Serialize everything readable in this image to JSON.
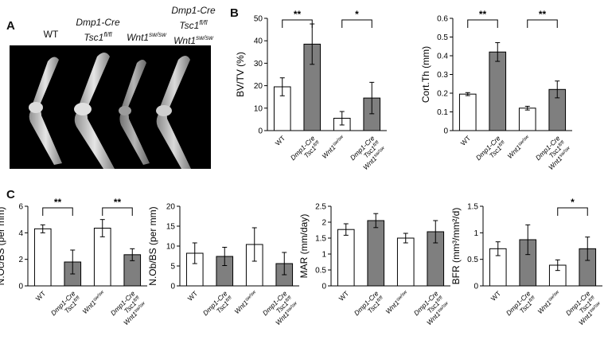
{
  "panel_a": {
    "letter": "A",
    "genotype_labels": [
      {
        "line1": "WT",
        "line2": "",
        "line2_sup": ""
      },
      {
        "line1": "Dmp1-Cre",
        "line2": "Tsc1",
        "line2_sup": "fl/fl"
      },
      {
        "line1": "Wnt1",
        "line1_sup": "sw/sw",
        "line2": "",
        "line2_sup": ""
      },
      {
        "line1": "Dmp1-Cre",
        "line2": "Tsc1",
        "line2_sup": "fl/fl",
        "line3": "Wnt1",
        "line3_sup": "sw/sw"
      }
    ]
  },
  "panel_b": {
    "letter": "B"
  },
  "panel_c": {
    "letter": "C"
  },
  "colors": {
    "wt_bar": "#ffffff",
    "mutant_bar": "#7f7f7f",
    "axis": "#000000"
  },
  "chart_data": [
    {
      "id": "bvtv",
      "type": "bar",
      "ylabel": "BV/TV (%)",
      "ylim": [
        0,
        50
      ],
      "yticks": [
        0,
        10,
        20,
        30,
        40,
        50
      ],
      "categories": [
        "WT",
        "Dmp1-Cre Tsc1 fl/fl",
        "Wnt1 sw/sw",
        "Dmp1-Cre Tsc1 fl/fl Wnt1 sw/sw"
      ],
      "values": [
        19.5,
        38.5,
        5.5,
        14.5
      ],
      "errors": [
        4,
        9,
        3,
        7
      ],
      "significance": [
        {
          "from": 0,
          "to": 1,
          "label": "**"
        },
        {
          "from": 2,
          "to": 3,
          "label": "*"
        }
      ]
    },
    {
      "id": "cortth",
      "type": "bar",
      "ylabel": "Cort.Th (mm)",
      "ylim": [
        0,
        0.6
      ],
      "yticks": [
        0,
        0.1,
        0.2,
        0.3,
        0.4,
        0.5,
        0.6
      ],
      "categories": [
        "WT",
        "Dmp1-Cre Tsc1 fl/fl",
        "Wnt1 sw/sw",
        "Dmp1-Cre Tsc1 fl/fl Wnt1 sw/sw"
      ],
      "values": [
        0.195,
        0.42,
        0.12,
        0.22
      ],
      "errors": [
        0.008,
        0.05,
        0.01,
        0.045
      ],
      "significance": [
        {
          "from": 0,
          "to": 1,
          "label": "**"
        },
        {
          "from": 2,
          "to": 3,
          "label": "**"
        }
      ]
    },
    {
      "id": "nocbs",
      "type": "bar",
      "ylabel": "N.Oc/BS (per mm)",
      "ylim": [
        0,
        6
      ],
      "yticks": [
        0,
        2,
        4,
        6
      ],
      "categories": [
        "WT",
        "Dmp1-Cre Tsc1 fl/fl",
        "Wnt1 sw/sw",
        "Dmp1-Cre Tsc1 fl/fl Wnt1 sw/sw"
      ],
      "values": [
        4.3,
        1.8,
        4.35,
        2.35
      ],
      "errors": [
        0.3,
        0.9,
        0.65,
        0.45
      ],
      "significance": [
        {
          "from": 0,
          "to": 1,
          "label": "**"
        },
        {
          "from": 2,
          "to": 3,
          "label": "**"
        }
      ]
    },
    {
      "id": "nobbs",
      "type": "bar",
      "ylabel": "N.Ob/BS (per mm)",
      "ylim": [
        0,
        20
      ],
      "yticks": [
        0,
        5,
        10,
        15,
        20
      ],
      "categories": [
        "WT",
        "Dmp1-Cre Tsc1 fl/fl",
        "Wnt1 sw/sw",
        "Dmp1-Cre Tsc1 fl/fl Wnt1 sw/sw"
      ],
      "values": [
        8.2,
        7.4,
        10.4,
        5.6
      ],
      "errors": [
        2.6,
        2.3,
        4.2,
        2.8
      ],
      "significance": []
    },
    {
      "id": "mar",
      "type": "bar",
      "ylabel": "MAR (mm/day)",
      "ylim": [
        0,
        2.5
      ],
      "yticks": [
        0,
        0.5,
        1,
        1.5,
        2,
        2.5
      ],
      "categories": [
        "WT",
        "Dmp1-Cre Tsc1 fl/fl",
        "Wnt1 sw/sw",
        "Dmp1-Cre Tsc1 fl/fl Wnt1 sw/sw"
      ],
      "values": [
        1.77,
        2.05,
        1.5,
        1.7
      ],
      "errors": [
        0.18,
        0.22,
        0.15,
        0.35
      ],
      "significance": []
    },
    {
      "id": "bfr",
      "type": "bar",
      "ylabel": "BFR (mm³/mm²/d)",
      "ylim": [
        0,
        1.5
      ],
      "yticks": [
        0,
        0.5,
        1,
        1.5
      ],
      "categories": [
        "WT",
        "Dmp1-Cre Tsc1 fl/fl",
        "Wnt1 sw/sw",
        "Dmp1-Cre Tsc1 fl/fl Wnt1 sw/sw"
      ],
      "values": [
        0.7,
        0.87,
        0.39,
        0.7
      ],
      "errors": [
        0.13,
        0.28,
        0.1,
        0.22
      ],
      "significance": [
        {
          "from": 2,
          "to": 3,
          "label": "*"
        }
      ]
    }
  ]
}
